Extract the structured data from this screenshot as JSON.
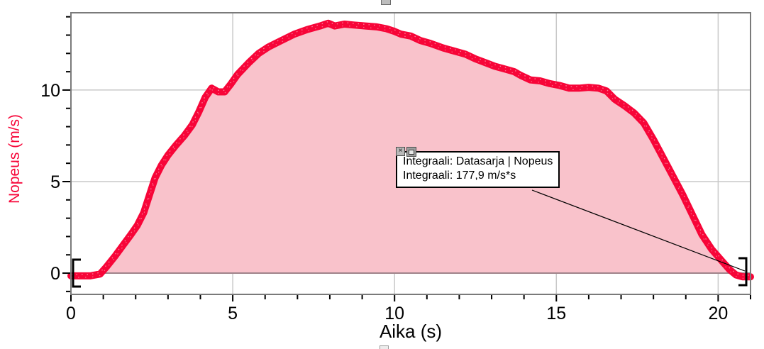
{
  "app": {
    "panel": "graph"
  },
  "icons": {
    "close_glyph": "×"
  },
  "chart_data": {
    "type": "area",
    "title": "",
    "xlabel": "Aika (s)",
    "ylabel": "Nopeus (m/s)",
    "xlim": [
      0,
      21
    ],
    "ylim": [
      -1.16,
      14.22
    ],
    "x_label_ticks": [
      0,
      5,
      10,
      15,
      20
    ],
    "y_label_ticks": [
      0,
      5,
      10
    ],
    "x_minor_tick_step": 1,
    "y_minor_tick_step": 1,
    "grid": true,
    "legend": "none",
    "series": [
      {
        "name": "Datasarja | Nopeus",
        "color": "#f70538",
        "fill_color": "#f9c2cb",
        "points": [
          [
            0,
            -0.15
          ],
          [
            0.6,
            -0.15
          ],
          [
            0.9,
            -0.05
          ],
          [
            1.1,
            0.35
          ],
          [
            1.35,
            0.9
          ],
          [
            1.6,
            1.5
          ],
          [
            1.85,
            2.1
          ],
          [
            2.05,
            2.6
          ],
          [
            2.25,
            3.3
          ],
          [
            2.45,
            4.4
          ],
          [
            2.6,
            5.2
          ],
          [
            2.8,
            5.9
          ],
          [
            3,
            6.45
          ],
          [
            3.25,
            7
          ],
          [
            3.5,
            7.5
          ],
          [
            3.75,
            8.1
          ],
          [
            3.95,
            8.8
          ],
          [
            4.15,
            9.6
          ],
          [
            4.35,
            10.1
          ],
          [
            4.55,
            9.9
          ],
          [
            4.75,
            9.9
          ],
          [
            4.95,
            10.35
          ],
          [
            5.15,
            10.85
          ],
          [
            5.5,
            11.5
          ],
          [
            5.8,
            12
          ],
          [
            6.1,
            12.35
          ],
          [
            6.5,
            12.7
          ],
          [
            6.9,
            13.05
          ],
          [
            7.3,
            13.3
          ],
          [
            7.7,
            13.5
          ],
          [
            7.95,
            13.65
          ],
          [
            8.15,
            13.5
          ],
          [
            8.45,
            13.6
          ],
          [
            8.75,
            13.55
          ],
          [
            9.1,
            13.5
          ],
          [
            9.45,
            13.45
          ],
          [
            9.75,
            13.35
          ],
          [
            10,
            13.2
          ],
          [
            10.2,
            13.05
          ],
          [
            10.5,
            12.95
          ],
          [
            10.8,
            12.7
          ],
          [
            11.1,
            12.55
          ],
          [
            11.5,
            12.3
          ],
          [
            11.9,
            12.1
          ],
          [
            12.2,
            11.95
          ],
          [
            12.5,
            11.7
          ],
          [
            12.8,
            11.5
          ],
          [
            13.1,
            11.3
          ],
          [
            13.4,
            11.15
          ],
          [
            13.7,
            11
          ],
          [
            13.9,
            10.8
          ],
          [
            14.2,
            10.55
          ],
          [
            14.5,
            10.5
          ],
          [
            14.8,
            10.35
          ],
          [
            15.1,
            10.25
          ],
          [
            15.4,
            10.1
          ],
          [
            15.7,
            10.1
          ],
          [
            16,
            10.15
          ],
          [
            16.3,
            10.1
          ],
          [
            16.55,
            9.95
          ],
          [
            16.8,
            9.5
          ],
          [
            17.1,
            9.15
          ],
          [
            17.4,
            8.75
          ],
          [
            17.7,
            8.2
          ],
          [
            18,
            7.3
          ],
          [
            18.3,
            6.3
          ],
          [
            18.6,
            5.3
          ],
          [
            18.9,
            4.3
          ],
          [
            19.2,
            3.2
          ],
          [
            19.5,
            2.1
          ],
          [
            19.8,
            1.3
          ],
          [
            20.1,
            0.7
          ],
          [
            20.35,
            0.2
          ],
          [
            20.55,
            -0.1
          ],
          [
            20.75,
            -0.2
          ],
          [
            21,
            -0.2
          ]
        ]
      }
    ],
    "integral": {
      "series": "Datasarja | Nopeus",
      "value_text": "177,9 m/s*s",
      "region_t": [
        0,
        21
      ]
    },
    "annotation": {
      "lines": [
        "Integraali: Datasarja | Nopeus",
        "Integraali: 177,9 m/s*s"
      ]
    },
    "style": {
      "grid_color": "#c9c9c9",
      "frame_color": "#7a7a7a",
      "zero_line_color": "#a0848b",
      "tick_color": "#000000",
      "label_color": "#000000",
      "ylabel_color": "#f70538"
    }
  }
}
